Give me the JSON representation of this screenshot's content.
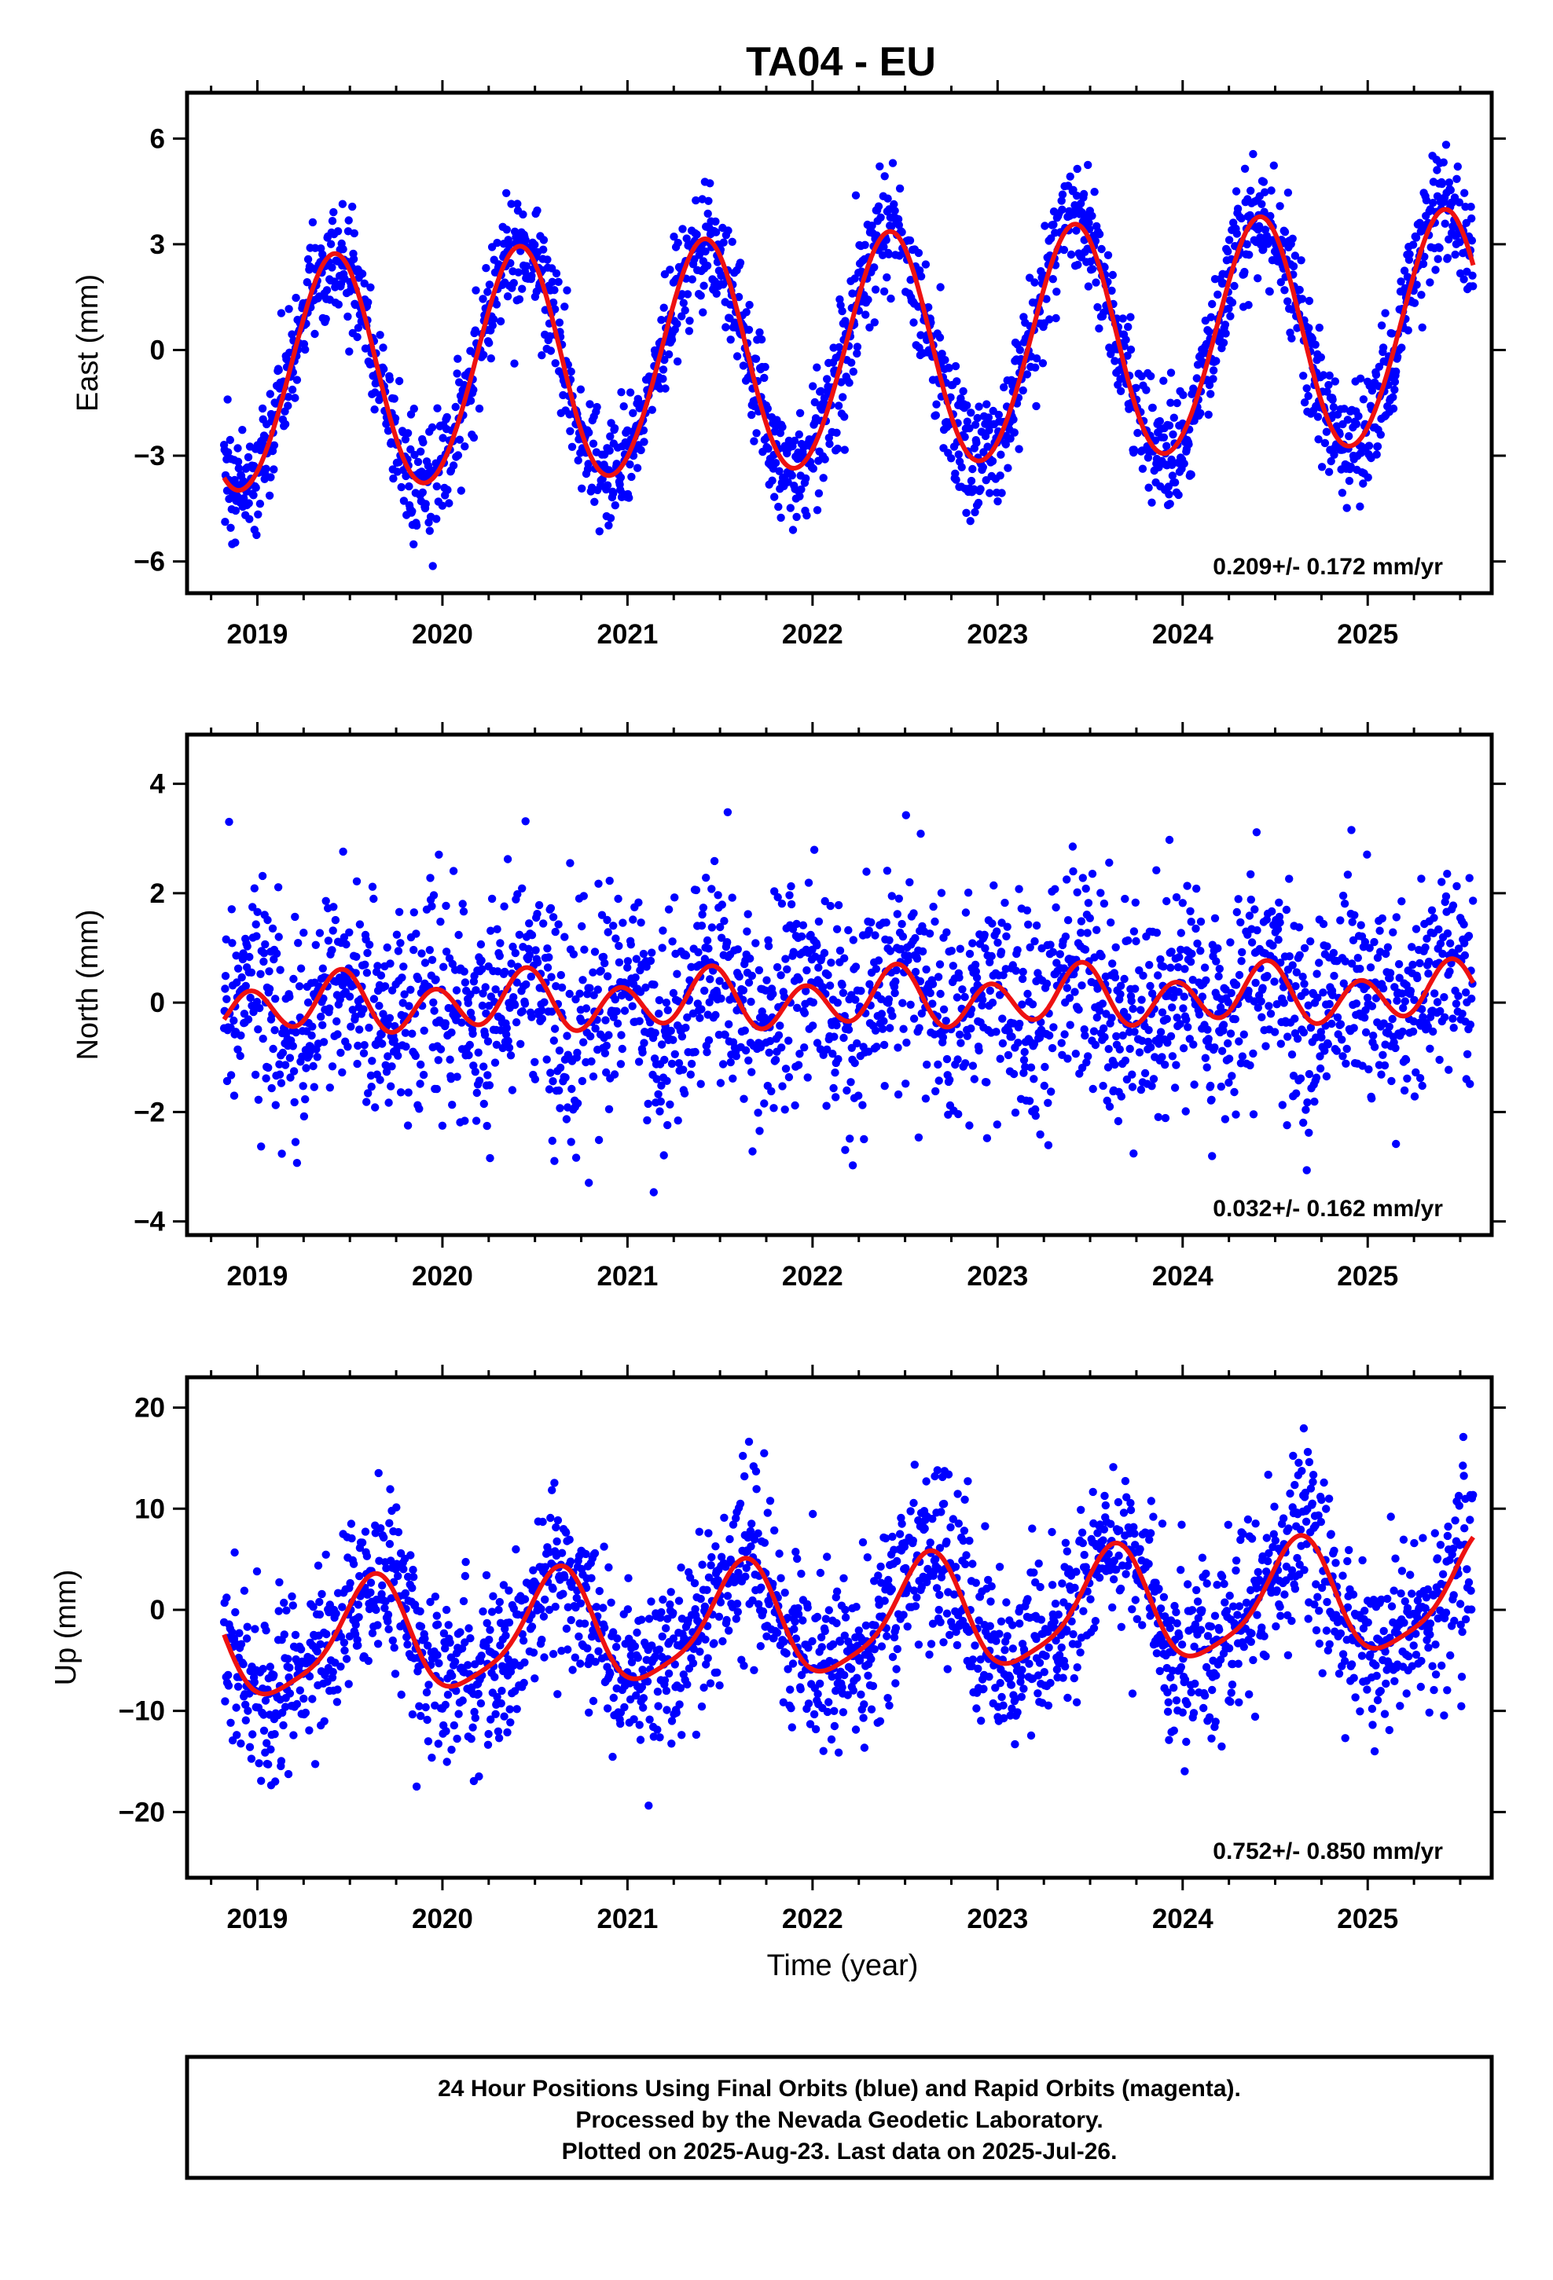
{
  "title": "TA04 - EU",
  "xlabel": "Time (year)",
  "caption": [
    "24 Hour Positions Using Final Orbits (blue) and Rapid Orbits (magenta).",
    "Processed by the Nevada Geodetic Laboratory.",
    "Plotted on 2025-Aug-23. Last data on 2025-Jul-26."
  ],
  "colors": {
    "data": "#0000ff",
    "model": "#ee1111",
    "frame": "#000000"
  },
  "chart_data": [
    {
      "type": "scatter",
      "ylabel": "East (mm)",
      "rate_text": "0.209+/- 0.172 mm/yr",
      "xlim": [
        2018.62,
        2025.67
      ],
      "ylim": [
        -6.9,
        7.3
      ],
      "xticks": [
        2019,
        2020,
        2021,
        2022,
        2023,
        2024,
        2025
      ],
      "yticks": [
        -6,
        -3,
        0,
        3,
        6
      ],
      "data_range": [
        2018.82,
        2025.57
      ],
      "model": {
        "offset": -0.15,
        "rate": 0.209,
        "annual_amp": 3.3,
        "annual_phase_doy": 150,
        "semiannual_amp": 0.15,
        "noise_sd": 0.85
      },
      "series": [
        {
          "name": "Final Orbits (blue)",
          "style": "dots"
        },
        {
          "name": "Model fit",
          "style": "line"
        }
      ]
    },
    {
      "type": "scatter",
      "ylabel": "North (mm)",
      "rate_text": "0.032+/- 0.162 mm/yr",
      "xlim": [
        2018.62,
        2025.67
      ],
      "ylim": [
        -4.25,
        4.9
      ],
      "xticks": [
        2019,
        2020,
        2021,
        2022,
        2023,
        2024,
        2025
      ],
      "yticks": [
        -4,
        -2,
        0,
        2,
        4
      ],
      "data_range": [
        2018.82,
        2025.57
      ],
      "model": {
        "offset": 0.05,
        "rate": 0.032,
        "annual_amp": 0.2,
        "annual_phase_doy": 150,
        "semiannual_amp": 0.45,
        "noise_sd": 1.0
      },
      "series": [
        {
          "name": "Final Orbits (blue)",
          "style": "dots"
        },
        {
          "name": "Model fit",
          "style": "line"
        }
      ]
    },
    {
      "type": "scatter",
      "ylabel": "Up (mm)",
      "rate_text": "0.752+/- 0.850 mm/yr",
      "xlim": [
        2018.62,
        2025.67
      ],
      "ylim": [
        -26.5,
        23.0
      ],
      "xticks": [
        2019,
        2020,
        2021,
        2022,
        2023,
        2024,
        2025
      ],
      "yticks": [
        -20,
        -10,
        0,
        10,
        20
      ],
      "data_range": [
        2018.82,
        2025.57
      ],
      "model": {
        "offset": -1.2,
        "rate": 0.752,
        "annual_amp": 5.5,
        "annual_phase_doy": 225,
        "semiannual_amp": 1.2,
        "noise_sd": 4.2
      },
      "series": [
        {
          "name": "Final Orbits (blue)",
          "style": "dots"
        },
        {
          "name": "Model fit",
          "style": "line"
        }
      ]
    }
  ]
}
